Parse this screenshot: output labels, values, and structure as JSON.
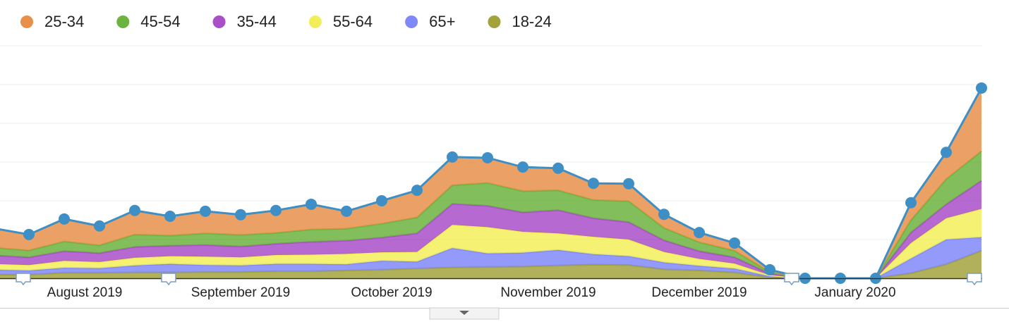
{
  "chart_data": {
    "type": "stacked_area",
    "categories": [
      null,
      null,
      null,
      null,
      null,
      null,
      null,
      null,
      null,
      null,
      null,
      null,
      null,
      null,
      null,
      null,
      null,
      null,
      null,
      null,
      null,
      null,
      null,
      null,
      null,
      null,
      null,
      null,
      null
    ],
    "series": [
      {
        "name": "25-34",
        "color": "#e8904a",
        "values": [
          5.0,
          4.1,
          5.8,
          5.0,
          6.2,
          5.0,
          5.7,
          5.2,
          5.8,
          6.5,
          4.5,
          5.9,
          7.0,
          7.3,
          6.5,
          6.2,
          5.7,
          4.3,
          4.5,
          3.5,
          2.5,
          2.0,
          0.6,
          0,
          0,
          0,
          4.5,
          6.9,
          16.3
        ]
      },
      {
        "name": "45-54",
        "color": "#6db33f",
        "values": [
          2.0,
          1.8,
          2.5,
          2.0,
          3.2,
          2.6,
          3.0,
          3.0,
          2.8,
          3.2,
          3.1,
          3.6,
          4.1,
          4.8,
          5.9,
          5.5,
          5.1,
          4.7,
          5.4,
          3.2,
          2.3,
          1.7,
          0.4,
          0,
          0,
          0,
          3.2,
          6.5,
          7.6
        ]
      },
      {
        "name": "35-44",
        "color": "#a94fc8",
        "values": [
          2.2,
          2.0,
          2.5,
          2.3,
          2.8,
          2.7,
          3.0,
          2.8,
          2.9,
          3.3,
          3.4,
          3.8,
          4.8,
          5.4,
          5.5,
          5.0,
          6.0,
          4.8,
          4.5,
          3.0,
          2.0,
          1.6,
          0.4,
          0,
          0,
          0,
          2.7,
          3.6,
          7.3
        ]
      },
      {
        "name": "55-64",
        "color": "#f2ee5a",
        "values": [
          1.5,
          1.4,
          1.8,
          1.6,
          2.0,
          2.0,
          2.2,
          2.1,
          2.3,
          2.4,
          2.7,
          2.2,
          2.5,
          6.0,
          6.8,
          5.4,
          4.3,
          4.5,
          4.3,
          2.7,
          1.8,
          1.3,
          0.3,
          0,
          0,
          0,
          4.0,
          5.5,
          7.3
        ]
      },
      {
        "name": "65+",
        "color": "#8088f8",
        "values": [
          1.3,
          1.1,
          1.3,
          1.2,
          1.8,
          2.2,
          1.8,
          1.7,
          1.9,
          1.9,
          1.6,
          2.3,
          1.8,
          5.0,
          3.5,
          3.6,
          4.0,
          2.7,
          2.3,
          1.8,
          1.2,
          1.0,
          0.3,
          0,
          0,
          0,
          3.8,
          6.4,
          3.5
        ]
      },
      {
        "name": "18-24",
        "color": "#a3a33e",
        "values": [
          0.9,
          0.9,
          1.4,
          1.4,
          1.5,
          1.5,
          1.6,
          1.6,
          1.8,
          1.8,
          2.0,
          2.2,
          2.5,
          2.8,
          2.9,
          3.0,
          3.3,
          3.5,
          3.4,
          2.3,
          2.0,
          1.5,
          0.2,
          0,
          0,
          0,
          1.3,
          3.6,
          7.1
        ]
      }
    ],
    "line_color": "#3d8fc5",
    "xticks": [
      {
        "value": 2.58,
        "label": "August 2019"
      },
      {
        "value": 7,
        "label": "September 2019"
      },
      {
        "value": 11.28,
        "label": "October 2019"
      },
      {
        "value": 15.72,
        "label": "November 2019"
      },
      {
        "value": 20,
        "label": "December 2019"
      },
      {
        "value": 24.42,
        "label": "January 2020"
      }
    ],
    "ylim": [
      0,
      60
    ],
    "yticks": [
      0,
      10,
      20,
      30,
      40,
      50,
      60
    ],
    "grid": true
  }
}
